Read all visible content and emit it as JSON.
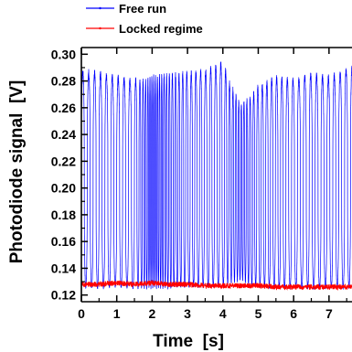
{
  "chart_data": {
    "type": "line",
    "title": "",
    "xlabel": "Time  [s]",
    "ylabel": "Photodiode signal  [V]",
    "xlim": [
      0,
      7.65
    ],
    "ylim": [
      0.115,
      0.305
    ],
    "xticks": [
      "0",
      "1",
      "2",
      "3",
      "4",
      "5",
      "6",
      "7"
    ],
    "yticks": [
      "0.12",
      "0.14",
      "0.16",
      "0.18",
      "0.20",
      "0.22",
      "0.24",
      "0.26",
      "0.28",
      "0.30"
    ],
    "legend_position": "top-left",
    "grid": false,
    "series": [
      {
        "name": "Free run",
        "color": "#0000ff",
        "description_values": "Fast oscillation between ~0.125 V and ~0.29 V over 0–7.65 s, dense burst near 1.8–2.6 s, peak 0.297 V near 4.0 s, dip to ~0.13 V around 4.3–4.7 s",
        "envelope_time": [
          0,
          0.5,
          1.0,
          1.5,
          1.8,
          2.0,
          2.5,
          3.0,
          3.5,
          3.9,
          4.0,
          4.2,
          4.5,
          4.8,
          5.0,
          5.5,
          6.0,
          6.5,
          7.0,
          7.65
        ],
        "envelope_max": [
          0.29,
          0.288,
          0.285,
          0.283,
          0.283,
          0.285,
          0.287,
          0.288,
          0.29,
          0.294,
          0.297,
          0.28,
          0.265,
          0.27,
          0.278,
          0.285,
          0.283,
          0.287,
          0.285,
          0.292
        ],
        "envelope_min": [
          0.125,
          0.124,
          0.125,
          0.124,
          0.124,
          0.124,
          0.124,
          0.125,
          0.125,
          0.126,
          0.126,
          0.128,
          0.13,
          0.126,
          0.125,
          0.124,
          0.124,
          0.124,
          0.124,
          0.124
        ],
        "oscillation_frequency_hz": [
          6,
          6,
          6,
          6,
          14,
          20,
          12,
          8,
          7,
          7,
          7,
          10,
          14,
          10,
          8,
          7,
          6,
          6,
          6,
          6
        ]
      },
      {
        "name": "Locked regime",
        "color": "#ff0000",
        "description_values": "Nearly flat around 0.128 V with small noise",
        "x": [
          0,
          0.5,
          1.0,
          1.5,
          2.0,
          2.5,
          3.0,
          3.5,
          4.0,
          4.5,
          5.0,
          5.5,
          6.0,
          6.5,
          7.0,
          7.65
        ],
        "y": [
          0.128,
          0.128,
          0.129,
          0.128,
          0.129,
          0.128,
          0.128,
          0.127,
          0.127,
          0.127,
          0.127,
          0.126,
          0.126,
          0.126,
          0.126,
          0.126
        ]
      }
    ]
  }
}
